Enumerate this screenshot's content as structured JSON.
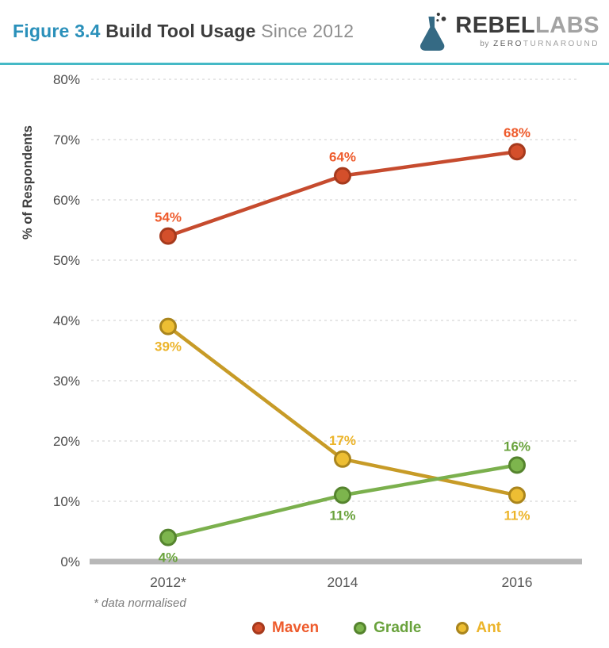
{
  "header": {
    "figure_label": "Figure 3.4",
    "title": "Build Tool Usage",
    "subtitle": "Since 2012"
  },
  "logo": {
    "brand_primary": "REBEL",
    "brand_secondary": "LABS",
    "byline_prefix": "by",
    "byline_zero": "ZERO",
    "byline_turnaround": "TURNAROUND"
  },
  "theme": {
    "accent_rule": "#45b9c6",
    "figure_label_blue": "#2a90ba"
  },
  "chart_data": {
    "type": "line",
    "title": "Build Tool Usage Since 2012",
    "categories": [
      "2012*",
      "2014",
      "2016"
    ],
    "series": [
      {
        "name": "Maven",
        "values": [
          54,
          64,
          68
        ],
        "labels": [
          "54%",
          "64%",
          "68%"
        ],
        "label_positions": [
          "above",
          "above",
          "above"
        ],
        "line_color": "#c64b2e",
        "marker_fill": "#d44f2b",
        "marker_stroke": "#a63a1d",
        "label_color": "#ee5b2c"
      },
      {
        "name": "Gradle",
        "values": [
          4,
          11,
          16
        ],
        "labels": [
          "4%",
          "11%",
          "16%"
        ],
        "label_positions": [
          "below",
          "below",
          "above"
        ],
        "line_color": "#7bb04d",
        "marker_fill": "#7db54d",
        "marker_stroke": "#55842e",
        "label_color": "#69a23c"
      },
      {
        "name": "Ant",
        "values": [
          39,
          17,
          11
        ],
        "labels": [
          "39%",
          "17%",
          "11%"
        ],
        "label_positions": [
          "below",
          "above",
          "below"
        ],
        "line_color": "#c79b27",
        "marker_fill": "#edbe33",
        "marker_stroke": "#aa851d",
        "label_color": "#ecb42a"
      }
    ],
    "xlabel": "",
    "ylabel": "% of Respondents",
    "ylim": [
      0,
      80
    ],
    "ytick_step": 10,
    "ytick_suffix": "%",
    "grid": "dashed-horizontal",
    "legend_position": "bottom",
    "footnote": "* data normalised"
  }
}
